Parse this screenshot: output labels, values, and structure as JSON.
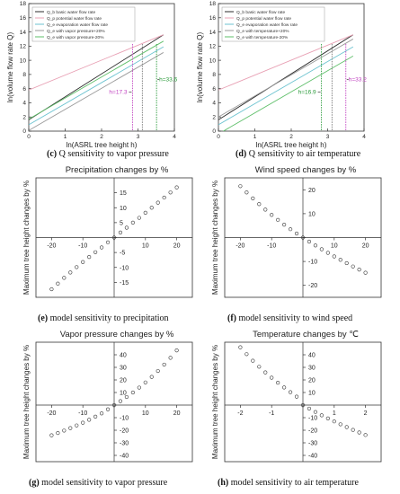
{
  "figure": {
    "captions": [
      {
        "letter": "(c)",
        "text": "Q sensitivity to vapor pressure"
      },
      {
        "letter": "(d)",
        "text": "Q sensitivity to air temperature"
      },
      {
        "letter": "(e)",
        "text": "model sensitivity to precipitation"
      },
      {
        "letter": "(f)",
        "text": "model sensitivity to wind speed"
      },
      {
        "letter": "(g)",
        "text": "model sensitivity to vapor pressure"
      },
      {
        "letter": "(h)",
        "text": "model sensitivity to air temperature"
      }
    ]
  },
  "chart_data": [
    {
      "id": "c",
      "type": "line",
      "xlabel": "ln(ASRL tree height h)",
      "ylabel": "ln(volume flow rate Q)",
      "xlim": [
        0,
        4
      ],
      "ylim": [
        0,
        18
      ],
      "xticks": [
        0,
        1,
        2,
        3,
        4
      ],
      "yticks": [
        0,
        2,
        4,
        6,
        8,
        10,
        12,
        14,
        16,
        18
      ],
      "legend_position": "top-left",
      "series": [
        {
          "name": "Q_b basic water flow rate",
          "color": "#2b2b2b",
          "x": [
            0,
            3.7
          ],
          "y": [
            1.6,
            13.6
          ]
        },
        {
          "name": "Q_p potential water flow rate",
          "color": "#e8a0b4",
          "x": [
            0,
            3.7
          ],
          "y": [
            5.8,
            13.6
          ]
        },
        {
          "name": "Q_e evaporation water flow rate",
          "color": "#6cc3d0",
          "x": [
            0,
            3.7
          ],
          "y": [
            0.9,
            11.9
          ]
        },
        {
          "name": "Q_e with vapor pressure+20%",
          "color": "#9a9a9a",
          "x": [
            0,
            3.7
          ],
          "y": [
            0.1,
            11.1
          ]
        },
        {
          "name": "Q_e with vapor pressure-20%",
          "color": "#5fbf6a",
          "x": [
            0,
            3.7
          ],
          "y": [
            1.7,
            12.7
          ]
        }
      ],
      "annotations": [
        {
          "text": "h=17.3",
          "x": 2.85,
          "color": "#c040c0"
        },
        {
          "text": "h=33.6",
          "x": 3.51,
          "color": "#2a9a3a"
        }
      ],
      "vlines": [
        {
          "x": 2.85,
          "color": "#c040c0"
        },
        {
          "x": 3.12,
          "color": "#777777"
        },
        {
          "x": 3.51,
          "color": "#2a9a3a"
        }
      ]
    },
    {
      "id": "d",
      "type": "line",
      "xlabel": "ln(ASRL tree height h)",
      "ylabel": "ln(volume flow rate Q)",
      "xlim": [
        0,
        4
      ],
      "ylim": [
        0,
        18
      ],
      "xticks": [
        0,
        1,
        2,
        3,
        4
      ],
      "yticks": [
        0,
        2,
        4,
        6,
        8,
        10,
        12,
        14,
        16,
        18
      ],
      "legend_position": "top-left",
      "series": [
        {
          "name": "Q_b basic water flow rate",
          "color": "#2b2b2b",
          "x": [
            0,
            3.7
          ],
          "y": [
            1.6,
            13.6
          ]
        },
        {
          "name": "Q_p potential water flow rate",
          "color": "#e8a0b4",
          "x": [
            0,
            3.7
          ],
          "y": [
            5.8,
            13.6
          ]
        },
        {
          "name": "Q_e evaporation water flow rate",
          "color": "#6cc3d0",
          "x": [
            0,
            3.7
          ],
          "y": [
            0.9,
            11.9
          ]
        },
        {
          "name": "Q_e with temperature+20%",
          "color": "#9a9a9a",
          "x": [
            0,
            3.7
          ],
          "y": [
            2.0,
            13.0
          ]
        },
        {
          "name": "Q_e with temperature-20%",
          "color": "#5fbf6a",
          "x": [
            0,
            3.7
          ],
          "y": [
            -0.4,
            10.6
          ]
        }
      ],
      "annotations": [
        {
          "text": "h=16.9",
          "x": 2.83,
          "color": "#2a9a3a"
        },
        {
          "text": "h=33.2",
          "x": 3.5,
          "color": "#c040c0"
        }
      ],
      "vlines": [
        {
          "x": 2.83,
          "color": "#2a9a3a"
        },
        {
          "x": 3.12,
          "color": "#777777"
        },
        {
          "x": 3.5,
          "color": "#c040c0"
        }
      ]
    },
    {
      "id": "e",
      "type": "scatter",
      "title": "Precipitation changes by %",
      "ylabel": "Maximum tree height changes by %",
      "xlim": [
        -25,
        25
      ],
      "ylim": [
        -20,
        20
      ],
      "xticks": [
        -20,
        -10,
        0,
        10,
        20
      ],
      "yticks": [
        -15,
        -10,
        -5,
        0,
        5,
        10,
        15
      ],
      "x": [
        -20,
        -18,
        -16,
        -14,
        -12,
        -10,
        -8,
        -6,
        -4,
        -2,
        0,
        2,
        4,
        6,
        8,
        10,
        12,
        14,
        16,
        18,
        20
      ],
      "y": [
        -17.3,
        -15.4,
        -13.5,
        -11.7,
        -9.9,
        -8.2,
        -6.5,
        -4.9,
        -3.3,
        -1.6,
        0,
        1.7,
        3.3,
        5.0,
        6.6,
        8.3,
        10.0,
        11.7,
        13.4,
        15.1,
        16.8
      ]
    },
    {
      "id": "f",
      "type": "scatter",
      "title": "Wind speed changes by %",
      "ylabel": "Maximum tree height changes by %",
      "xlim": [
        -25,
        25
      ],
      "ylim": [
        -25,
        25
      ],
      "xticks": [
        -20,
        -10,
        0,
        10,
        20
      ],
      "yticks": [
        -20,
        -10,
        0,
        10,
        20
      ],
      "x": [
        -20,
        -18,
        -16,
        -14,
        -12,
        -10,
        -8,
        -6,
        -4,
        -2,
        0,
        2,
        4,
        6,
        8,
        10,
        12,
        14,
        16,
        18,
        20
      ],
      "y": [
        21.5,
        18.9,
        16.4,
        14.0,
        11.7,
        9.5,
        7.4,
        5.4,
        3.5,
        1.7,
        0,
        -1.7,
        -3.3,
        -4.9,
        -6.4,
        -7.9,
        -9.3,
        -10.7,
        -12.1,
        -13.4,
        -14.7
      ]
    },
    {
      "id": "g",
      "type": "scatter",
      "title": "Vapor pressure changes by %",
      "ylabel": "Maximum tree height changes by %",
      "xlim": [
        -25,
        25
      ],
      "ylim": [
        -45,
        50
      ],
      "xticks": [
        -20,
        -10,
        0,
        10,
        20
      ],
      "yticks": [
        -40,
        -30,
        -20,
        -10,
        0,
        10,
        20,
        30,
        40
      ],
      "x": [
        -20,
        -18,
        -16,
        -14,
        -12,
        -10,
        -8,
        -6,
        -4,
        -2,
        0,
        2,
        4,
        6,
        8,
        10,
        12,
        14,
        16,
        18,
        20
      ],
      "y": [
        -24,
        -22.2,
        -20.3,
        -18.3,
        -16.2,
        -14.0,
        -11.7,
        -9.2,
        -6.6,
        -3.4,
        0,
        3.1,
        6.4,
        10.0,
        13.9,
        18.0,
        22.4,
        27.1,
        32.2,
        37.6,
        43.5
      ]
    },
    {
      "id": "h",
      "type": "scatter",
      "title": "Temperature changes by ℃",
      "ylabel": "Maximum tree height changes by %",
      "xlim": [
        -2.5,
        2.5
      ],
      "ylim": [
        -45,
        50
      ],
      "xticks": [
        -2,
        -1,
        0,
        1,
        2
      ],
      "yticks": [
        -40,
        -30,
        -20,
        -10,
        0,
        10,
        20,
        30,
        40
      ],
      "x": [
        -2.0,
        -1.8,
        -1.6,
        -1.4,
        -1.2,
        -1.0,
        -0.8,
        -0.6,
        -0.4,
        -0.2,
        0,
        0.2,
        0.4,
        0.6,
        0.8,
        1.0,
        1.2,
        1.4,
        1.6,
        1.8,
        2.0
      ],
      "y": [
        46,
        40.5,
        35.3,
        30.5,
        26.0,
        21.8,
        17.8,
        14.0,
        10.3,
        6.7,
        0,
        -2.8,
        -5.5,
        -8.1,
        -10.6,
        -13.0,
        -15.3,
        -17.5,
        -19.7,
        -21.8,
        -23.8
      ]
    }
  ]
}
